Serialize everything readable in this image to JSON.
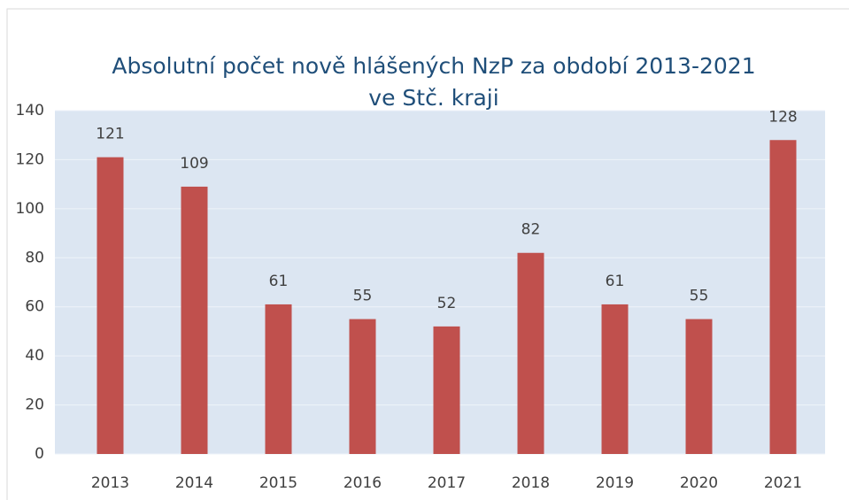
{
  "chart_data": {
    "type": "bar",
    "title": [
      "Absolutní počet nově hlášených NzP za období 2013-2021",
      "ve Stč. kraji"
    ],
    "categories": [
      "2013",
      "2014",
      "2015",
      "2016",
      "2017",
      "2018",
      "2019",
      "2020",
      "2021"
    ],
    "values": [
      121,
      109,
      61,
      55,
      52,
      82,
      61,
      55,
      128
    ],
    "color": "#c0504d",
    "ylim": [
      0,
      140
    ],
    "yticks": [
      0,
      20,
      40,
      60,
      80,
      100,
      120,
      140
    ],
    "grid": true
  }
}
